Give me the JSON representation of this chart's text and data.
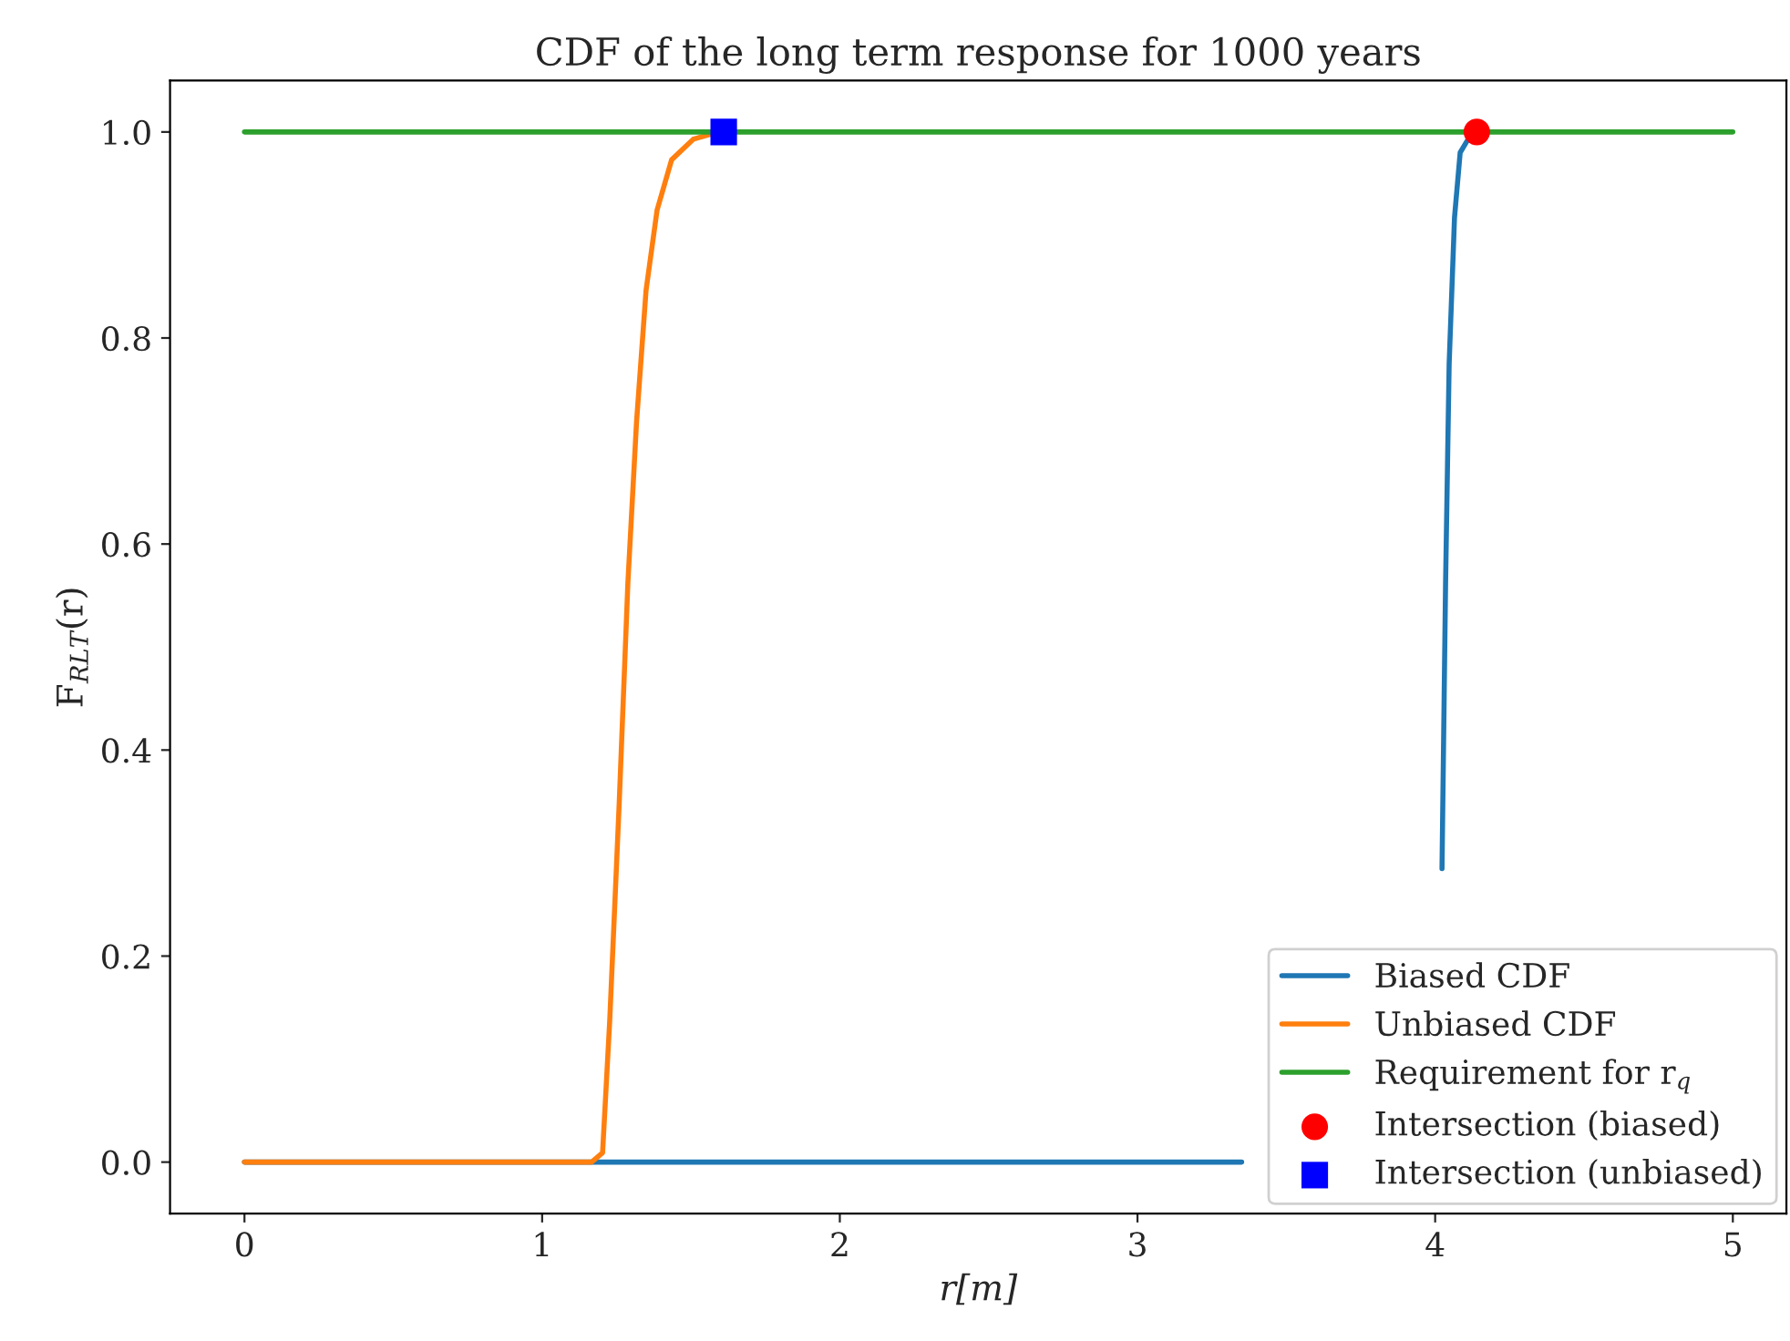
{
  "chart_data": {
    "type": "line",
    "title": "CDF of the long term response for 1000 years",
    "xlabel": "r[m]",
    "ylabel": "F$_{RLT}$(r)",
    "xlim": [
      -0.25,
      5.18
    ],
    "ylim": [
      -0.05,
      1.05
    ],
    "xticks": [
      0,
      1,
      2,
      3,
      4,
      5
    ],
    "yticks": [
      {
        "value": 0,
        "label": "0.0"
      },
      {
        "value": 0.2,
        "label": "0.2"
      },
      {
        "value": 0.4,
        "label": "0.4"
      },
      {
        "value": 0.6,
        "label": "0.6"
      },
      {
        "value": 0.8,
        "label": "0.8"
      },
      {
        "value": 1.0,
        "label": "1.0"
      }
    ],
    "grid": false,
    "legend": "bottom right",
    "series": [
      {
        "name": "Biased CDF",
        "color": "#1f77b4",
        "x": [
          0,
          1,
          2,
          3,
          3.35,
          3.7,
          4.023,
          4.035,
          4.047,
          4.065,
          4.084,
          4.121
        ],
        "values": [
          0,
          0,
          0,
          0,
          0,
          null,
          0.285,
          0.562,
          0.775,
          0.917,
          0.98,
          0.998
        ]
      },
      {
        "name": "Unbiased CDF",
        "color": "#ff7f0e",
        "x": [
          0,
          1.166,
          1.203,
          1.227,
          1.259,
          1.288,
          1.317,
          1.349,
          1.386,
          1.435,
          1.508,
          1.569
        ],
        "values": [
          0,
          0,
          0.009,
          0.137,
          0.349,
          0.562,
          0.718,
          0.846,
          0.924,
          0.973,
          0.993,
          0.998
        ]
      },
      {
        "name": "Requirement for r$_{q}$",
        "color": "#2ca02c",
        "x": [
          0,
          5
        ],
        "values": [
          1,
          1
        ]
      },
      {
        "name": "Intersection (biased)",
        "type": "scatter",
        "marker": "circle",
        "color": "#ff0000",
        "x": [
          4.14
        ],
        "values": [
          1
        ]
      },
      {
        "name": "Intersection (unbiased)",
        "type": "scatter",
        "marker": "square",
        "color": "#0000ff",
        "x": [
          1.61
        ],
        "values": [
          1
        ]
      }
    ]
  }
}
